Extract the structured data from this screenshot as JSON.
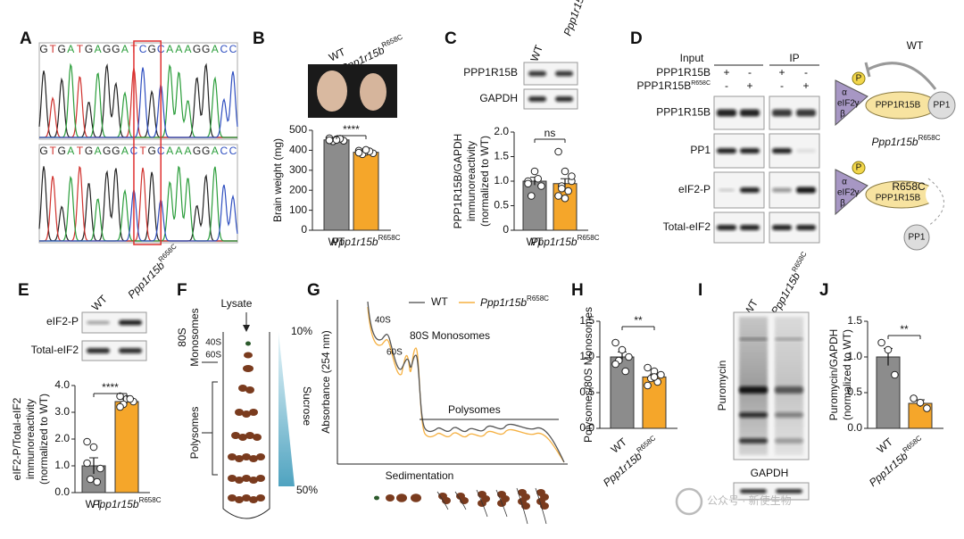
{
  "genotype": {
    "name": "Ppp1r15b",
    "allele": "R658C"
  },
  "A": {
    "label": "A",
    "seq_wt": [
      "G",
      "T",
      "G",
      "A",
      "T",
      "G",
      "A",
      "G",
      "G",
      "A",
      "T",
      "C",
      "G",
      "C",
      "A",
      "A",
      "A",
      "G",
      "G",
      "A",
      "C",
      "C"
    ],
    "seq_mut": [
      "G",
      "T",
      "G",
      "A",
      "T",
      "G",
      "A",
      "G",
      "G",
      "A",
      "C",
      "T",
      "G",
      "C",
      "A",
      "A",
      "A",
      "G",
      "G",
      "A",
      "C",
      "C"
    ]
  },
  "B": {
    "label": "B",
    "wt": "WT",
    "ylabel": [
      "Brain weight (mg)"
    ],
    "ylim": [
      0,
      500
    ],
    "yticks": [
      0,
      100,
      200,
      300,
      400,
      500
    ],
    "sig": "****",
    "groups": [
      {
        "name": "WT",
        "color": "#8c8c8c",
        "value": 452,
        "error": 6,
        "points": [
          460,
          455,
          448,
          445,
          458,
          450,
          452
        ]
      },
      {
        "name": "Ppp1r15b",
        "superscript": "R658C",
        "color": "#f5a62a",
        "value": 390,
        "error": 7,
        "points": [
          398,
          392,
          385,
          380,
          395,
          388,
          402
        ]
      }
    ]
  },
  "C": {
    "label": "C",
    "wt": "WT",
    "blots": [
      "PPP1R15B",
      "GAPDH"
    ],
    "ylabel": [
      "PPP1R15B/GAPDH",
      "immunoreactivity",
      "(normalized to WT)"
    ],
    "ylim": [
      0,
      2
    ],
    "yticks": [
      0,
      0.5,
      {
        "value": 1,
        "label": "1.0"
      },
      1.5,
      {
        "value": 2,
        "label": "2.0"
      }
    ],
    "sig": "ns",
    "groups": [
      {
        "name": "WT",
        "color": "#8c8c8c",
        "value": 1.0,
        "error": 0.08,
        "points": [
          1.0,
          1.2,
          0.9,
          0.7,
          1.05,
          0.95
        ]
      },
      {
        "name": "Ppp1r15b",
        "superscript": "R658C",
        "color": "#f5a62a",
        "value": 0.95,
        "error": 0.1,
        "points": [
          1.6,
          1.2,
          1.0,
          0.9,
          0.8,
          0.7,
          0.65,
          1.1,
          0.85
        ]
      }
    ]
  },
  "D": {
    "label": "D",
    "input": "Input",
    "ip": "IP",
    "conditions": [
      {
        "name": "PPP1R15B",
        "signs": [
          "+",
          "-",
          "+",
          "-"
        ]
      },
      {
        "name": "PPP1R15B",
        "superscript": "R658C",
        "signs": [
          "-",
          "+",
          "-",
          "+"
        ]
      }
    ],
    "rows": [
      "PPP1R15B",
      "PP1",
      "eIF2-P",
      "Total-eIF2"
    ],
    "diagram": {
      "wt": "WT",
      "p": "P",
      "alpha": "α",
      "beta": "β",
      "gamma": "γ",
      "eif2": "eIF2",
      "ppp1r15b": "PPP1R15B",
      "pp1": "PP1"
    }
  },
  "E": {
    "label": "E",
    "wt": "WT",
    "blots": [
      "eIF2-P",
      "Total-eIF2"
    ],
    "ylabel": [
      "eIF2-P/Total-eIF2",
      "immunoreactivity",
      "(normalized to WT)"
    ],
    "ylim": [
      0,
      4
    ],
    "yticks": [
      {
        "value": 0,
        "label": "0.0"
      },
      {
        "value": 1,
        "label": "1.0"
      },
      {
        "value": 2,
        "label": "2.0"
      },
      {
        "value": 3,
        "label": "3.0"
      },
      {
        "value": 4,
        "label": "4.0"
      }
    ],
    "sig": "****",
    "groups": [
      {
        "name": "WT",
        "color": "#8c8c8c",
        "value": 1.0,
        "error": 0.3,
        "points": [
          1.9,
          1.7,
          0.9,
          0.5,
          0.4,
          1.1
        ]
      },
      {
        "name": "Ppp1r15b",
        "superscript": "R658C",
        "color": "#f5a62a",
        "value": 3.4,
        "error": 0.08,
        "points": [
          3.6,
          3.5,
          3.4,
          3.3,
          3.5,
          3.2
        ]
      }
    ]
  },
  "F": {
    "label": "F",
    "lysate": "Lysate",
    "top": "10%",
    "bottom": "50%",
    "sucrose": "Sucrose",
    "s40": "40S",
    "s60": "60S",
    "s80": "80S",
    "monosomes": "Monosomes",
    "polysomes": "Polysomes"
  },
  "G": {
    "label": "G",
    "ylabel": "Absorbance (254 nm)",
    "xlabel": "Sedimentation",
    "legend": "WT",
    "peaks": [
      "40S",
      "60S",
      "80S Monosomes"
    ],
    "polysomes": "Polysomes"
  },
  "H": {
    "label": "H",
    "ylabel": [
      "Polysomes/80S Monosomes"
    ],
    "ylim": [
      0,
      1.5
    ],
    "yticks": [
      {
        "value": 0,
        "label": "0.0"
      },
      0.5,
      {
        "value": 1,
        "label": "1.0"
      },
      1.5
    ],
    "sig": "**",
    "groups": [
      {
        "name": "WT",
        "color": "#8c8c8c",
        "value": 1.0,
        "error": 0.07,
        "points": [
          1.2,
          1.1,
          1.0,
          0.95,
          0.8,
          0.9
        ]
      },
      {
        "name": "Ppp1r15b",
        "superscript": "R658C",
        "color": "#f5a62a",
        "value": 0.72,
        "error": 0.04,
        "points": [
          0.85,
          0.8,
          0.75,
          0.7,
          0.65,
          0.6,
          0.72
        ]
      }
    ]
  },
  "I": {
    "label": "I",
    "wt": "WT",
    "puromycin": "Puromycin",
    "gapdh": "GAPDH"
  },
  "J": {
    "label": "J",
    "ylabel": [
      "Puromycin/GAPDH",
      "(normalized to WT)"
    ],
    "ylim": [
      0,
      1.5
    ],
    "yticks": [
      {
        "value": 0,
        "label": "0.0"
      },
      0.5,
      {
        "value": 1,
        "label": "1.0"
      },
      1.5
    ],
    "sig": "**",
    "groups": [
      {
        "name": "WT",
        "color": "#8c8c8c",
        "value": 1.0,
        "error": 0.12,
        "points": [
          1.2,
          1.1,
          0.75
        ]
      },
      {
        "name": "Ppp1r15b",
        "superscript": "R658C",
        "color": "#f5a62a",
        "value": 0.35,
        "error": 0.05,
        "points": [
          0.42,
          0.36,
          0.28
        ]
      }
    ]
  },
  "watermark": "公众号 · 新使生物"
}
